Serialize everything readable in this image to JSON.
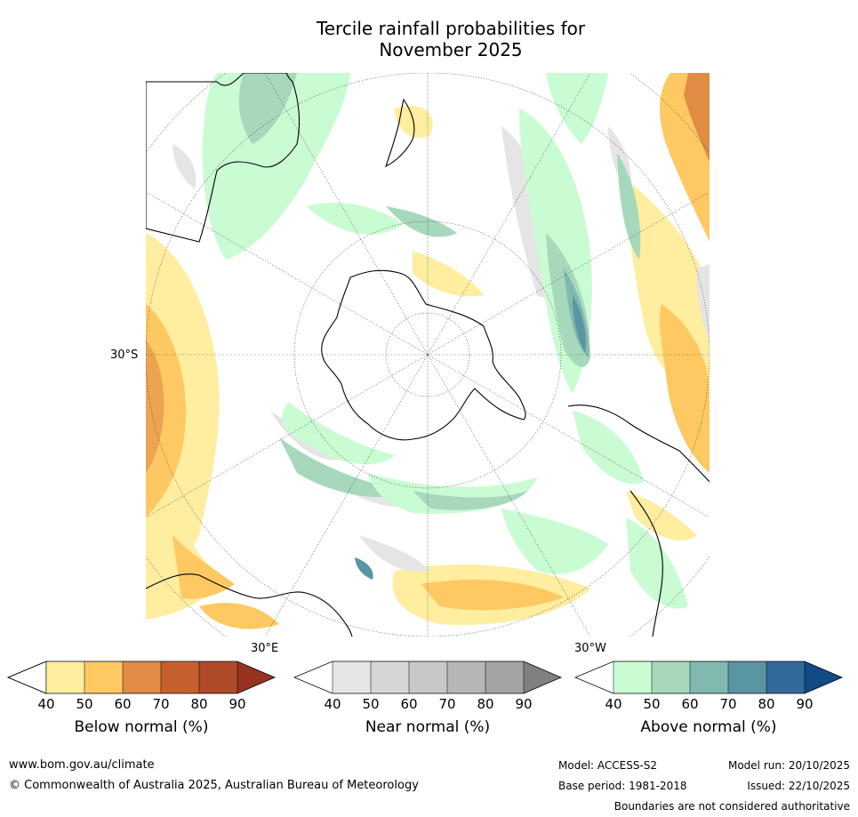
{
  "title_line1": "Tercile rainfall probabilities for",
  "title_line2": "November 2025",
  "map": {
    "projection": "south-polar-stereographic",
    "lat_label": "30°S",
    "lon_labels": [
      "30°E",
      "30°W"
    ]
  },
  "colorbars": [
    {
      "name": "Below normal (%)",
      "ticks": [
        "40",
        "50",
        "60",
        "70",
        "80",
        "90"
      ],
      "colors": [
        "#ffffff",
        "#ffeda0",
        "#fec962",
        "#e08c45",
        "#c8602e",
        "#b04a29",
        "#973220"
      ]
    },
    {
      "name": "Near normal (%)",
      "ticks": [
        "40",
        "50",
        "60",
        "70",
        "80",
        "90"
      ],
      "colors": [
        "#ffffff",
        "#e5e5e5",
        "#d6d6d6",
        "#c8c8c8",
        "#b6b6b6",
        "#a3a3a3",
        "#808080"
      ]
    },
    {
      "name": "Above normal (%)",
      "ticks": [
        "40",
        "50",
        "60",
        "70",
        "80",
        "90"
      ],
      "colors": [
        "#ffffff",
        "#c9fcd2",
        "#a6d9bc",
        "#81b8b0",
        "#5a95a2",
        "#33689b",
        "#114a84"
      ]
    }
  ],
  "footer": {
    "website": "www.bom.gov.au/climate",
    "copyright": "© Commonwealth of Australia 2025, Australian Bureau of Meteorology",
    "model": "Model: ACCESS-S2",
    "base_period": "Base period: 1981-2018",
    "model_run": "Model run: 20/10/2025",
    "issued": "Issued: 22/10/2025",
    "disclaimer": "Boundaries are not considered authoritative"
  }
}
